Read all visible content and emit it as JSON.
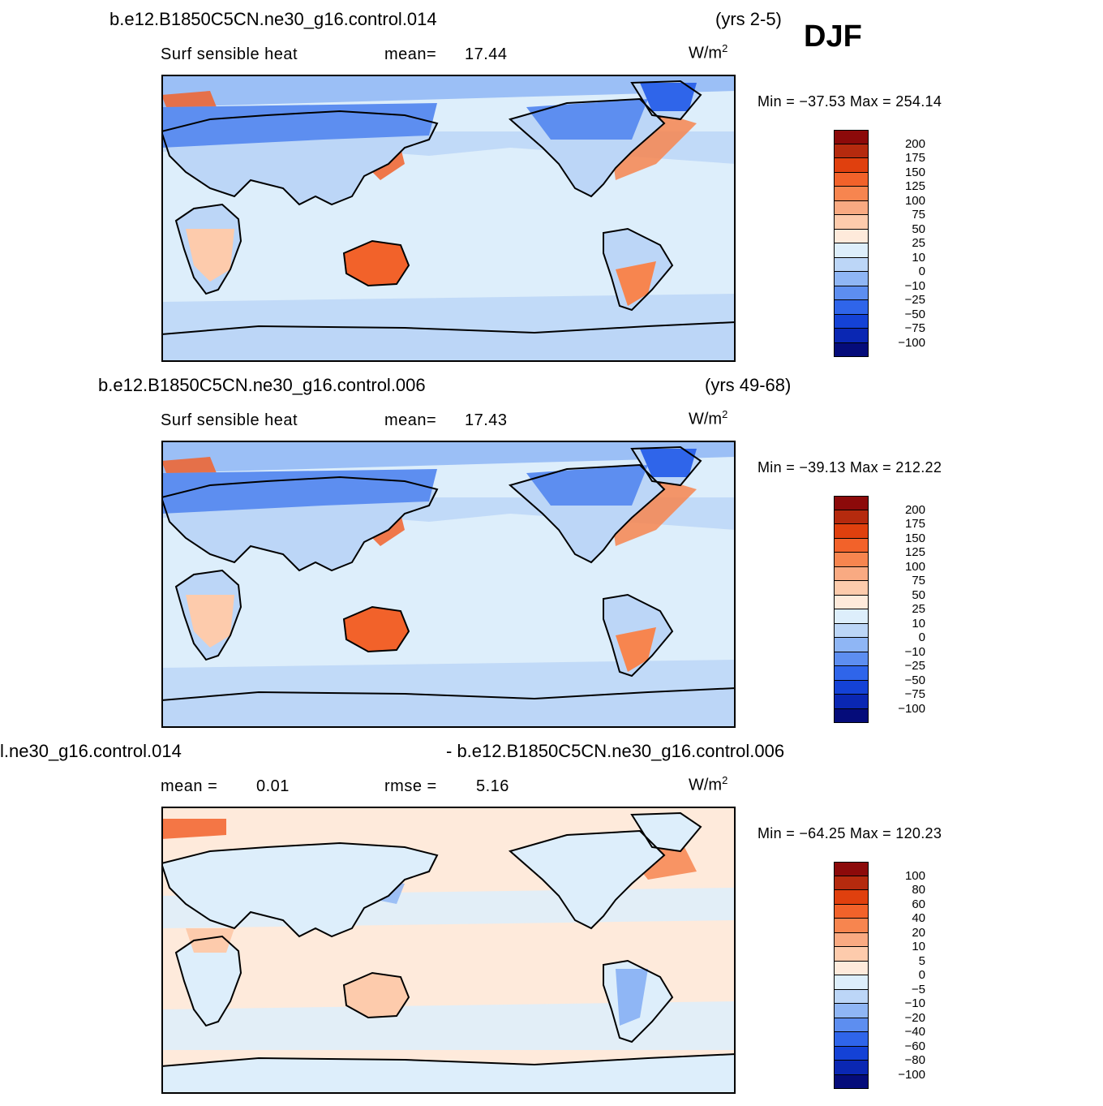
{
  "season": "DJF",
  "units_base": "W/m",
  "units_exp": "2",
  "panels": [
    {
      "title": "b.e12.B1850C5CN.ne30_g16.control.014",
      "years": "(yrs 2-5)",
      "variable": "Surf  sensible  heat",
      "stat_label": "mean=",
      "stat_value": "17.44",
      "min_max": "Min  =  −37.53  Max  =  254.14",
      "scheme": "abs"
    },
    {
      "title": "b.e12.B1850C5CN.ne30_g16.control.006",
      "years": "(yrs 49-68)",
      "variable": "Surf  sensible  heat",
      "stat_label": "mean=",
      "stat_value": "17.43",
      "min_max": "Min  =  −39.13  Max  =  212.22",
      "scheme": "abs"
    },
    {
      "title": "l.ne30_g16.control.014",
      "title2": "- b.e12.B1850C5CN.ne30_g16.control.006",
      "mean_label": "mean  =",
      "mean_value": "0.01",
      "rmse_label": "rmse  =",
      "rmse_value": "5.16",
      "min_max": "Min  =  −64.25  Max  =  120.23",
      "scheme": "diff"
    }
  ],
  "colorbars": {
    "abs": {
      "levels": [
        "200",
        "175",
        "150",
        "125",
        "100",
        "75",
        "50",
        "25",
        "10",
        "0",
        "−10",
        "−25",
        "−50",
        "−75",
        "−100"
      ],
      "colors": [
        "#8c0a0a",
        "#b52a0e",
        "#e0400e",
        "#f2622a",
        "#f7854f",
        "#f9aa82",
        "#fdcbac",
        "#feeadb",
        "#ddeefb",
        "#bcd6f7",
        "#8fb6f5",
        "#5d8ef0",
        "#2f65ea",
        "#1442d6",
        "#0a27b3",
        "#050c7a"
      ]
    },
    "diff": {
      "levels": [
        "100",
        "80",
        "60",
        "40",
        "20",
        "10",
        "5",
        "0",
        "−5",
        "−10",
        "−20",
        "−40",
        "−60",
        "−80",
        "−100"
      ],
      "colors": [
        "#8c0a0a",
        "#b52a0e",
        "#e0400e",
        "#f2622a",
        "#f7854f",
        "#f9aa82",
        "#fdcbac",
        "#feeadb",
        "#ddeefb",
        "#bcd6f7",
        "#8fb6f5",
        "#5d8ef0",
        "#2f65ea",
        "#1442d6",
        "#0a27b3",
        "#050c7a"
      ]
    }
  }
}
